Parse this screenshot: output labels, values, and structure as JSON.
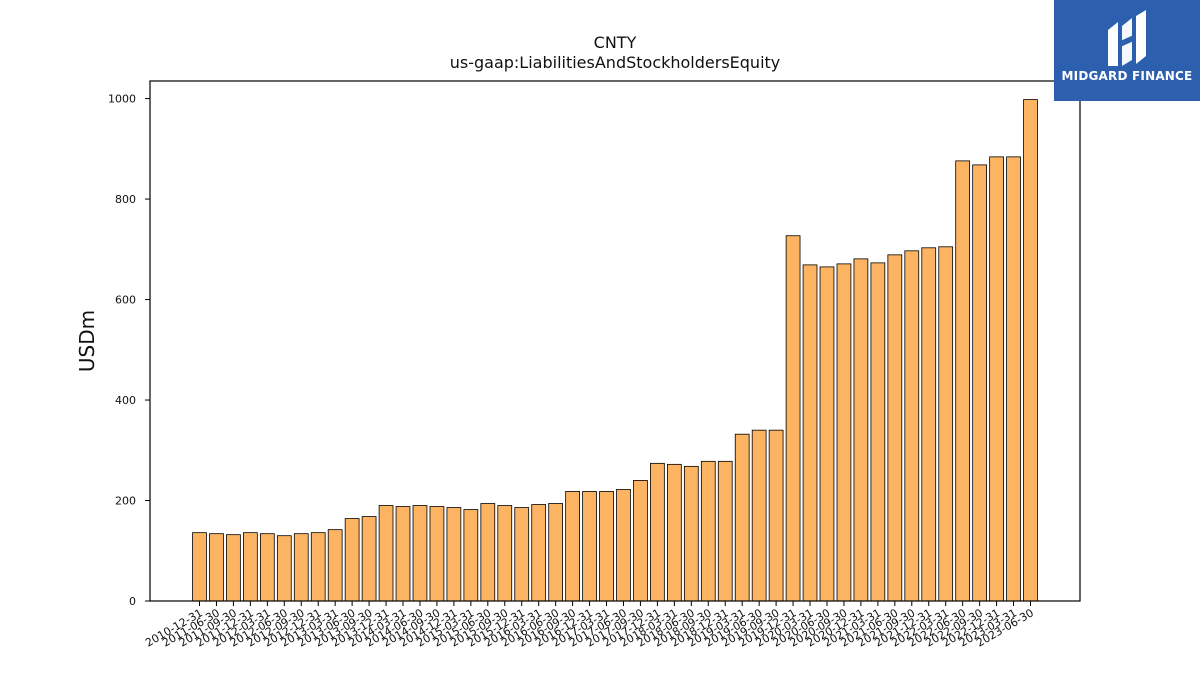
{
  "chart_data": {
    "type": "bar",
    "title": "CNTY",
    "subtitle": "us-gaap:LiabilitiesAndStockholdersEquity",
    "xlabel": "",
    "ylabel": "USDm",
    "ylim": [
      0,
      1035
    ],
    "yticks": [
      0,
      200,
      400,
      600,
      800,
      1000
    ],
    "grid": false,
    "bar_color": "#fdb462",
    "bar_edge_color": "#000000",
    "categories": [
      "2010-12-31",
      "2011-06-30",
      "2011-09-30",
      "2011-12-31",
      "2012-03-31",
      "2012-06-30",
      "2012-09-30",
      "2012-12-31",
      "2013-03-31",
      "2013-06-30",
      "2013-09-30",
      "2013-12-31",
      "2014-03-31",
      "2014-06-30",
      "2014-09-30",
      "2014-12-31",
      "2015-03-31",
      "2015-06-30",
      "2015-09-30",
      "2015-12-31",
      "2016-03-31",
      "2016-06-30",
      "2016-09-30",
      "2016-12-31",
      "2017-03-31",
      "2017-06-30",
      "2017-09-30",
      "2017-12-31",
      "2018-03-31",
      "2018-06-30",
      "2018-09-30",
      "2018-12-31",
      "2019-03-31",
      "2019-06-30",
      "2019-09-30",
      "2019-12-31",
      "2020-03-31",
      "2020-06-30",
      "2020-09-30",
      "2020-12-31",
      "2021-03-31",
      "2021-06-30",
      "2021-09-30",
      "2021-12-31",
      "2022-03-31",
      "2022-06-30",
      "2022-09-30",
      "2022-12-31",
      "2023-03-31",
      "2023-06-30"
    ],
    "values": [
      136,
      134,
      132,
      136,
      134,
      130,
      134,
      136,
      142,
      164,
      168,
      190,
      188,
      190,
      188,
      186,
      182,
      194,
      190,
      186,
      192,
      194,
      218,
      218,
      218,
      222,
      240,
      274,
      272,
      268,
      278,
      278,
      332,
      340,
      340,
      727,
      669,
      665,
      671,
      681,
      673,
      689,
      697,
      703,
      705,
      876,
      868,
      884,
      884,
      998
    ]
  },
  "logo": {
    "text": "MIDGARD FINANCE",
    "bg": "#2c5fae"
  }
}
